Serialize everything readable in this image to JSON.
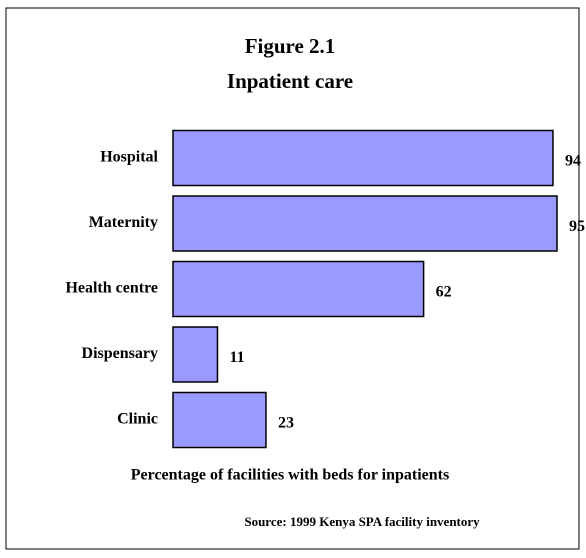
{
  "chart_data": {
    "type": "bar",
    "orientation": "horizontal",
    "title": "Figure 2.1",
    "subtitle": "Inpatient care",
    "x_label": "Percentage of facilities with beds for inpatients",
    "source": "Source:  1999 Kenya SPA facility inventory",
    "categories": [
      "Hospital",
      "Maternity",
      "Health centre",
      "Dispensary",
      "Clinic"
    ],
    "values": [
      94,
      95,
      62,
      11,
      23
    ],
    "color": "#9999ff"
  }
}
